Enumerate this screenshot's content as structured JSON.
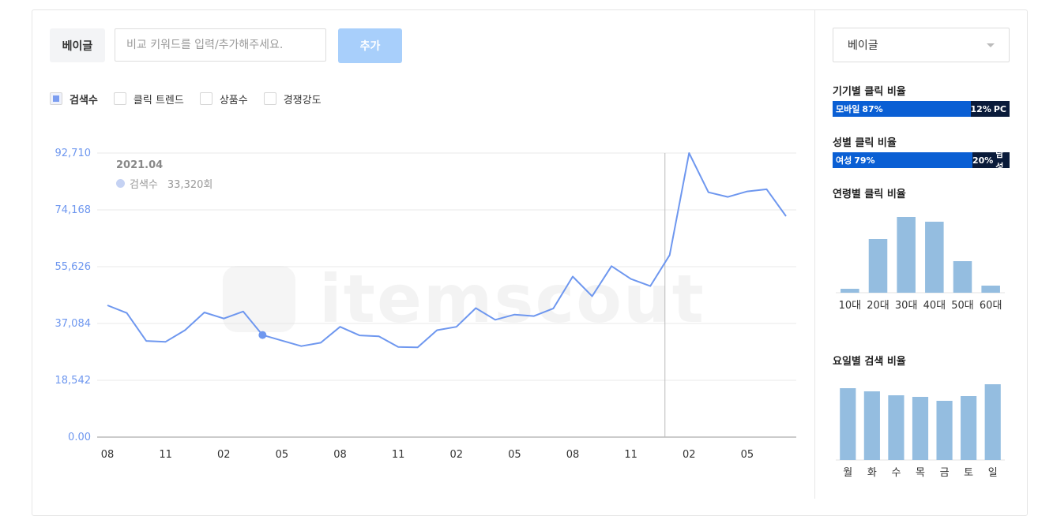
{
  "compare": {
    "keyword_chip": "베이글",
    "input_placeholder": "비교 키워드를 입력/추가해주세요.",
    "add_button": "추가"
  },
  "legend": [
    {
      "label": "검색수",
      "checked": true
    },
    {
      "label": "클릭 트렌드",
      "checked": false
    },
    {
      "label": "상품수",
      "checked": false
    },
    {
      "label": "경쟁강도",
      "checked": false
    }
  ],
  "watermark": "itemscout",
  "tooltip": {
    "date": "2021.04",
    "series": "검색수",
    "value": "33,320회"
  },
  "chart_data": {
    "type": "line",
    "title": "",
    "series": [
      {
        "name": "검색수",
        "color": "#6e97ef",
        "values": [
          43000,
          40500,
          31400,
          31100,
          34900,
          40700,
          38700,
          41000,
          33320,
          31500,
          29700,
          30800,
          36000,
          33200,
          32900,
          29400,
          29300,
          34900,
          36000,
          42100,
          38300,
          40000,
          39500,
          42000,
          52400,
          46000,
          55800,
          51600,
          49300,
          59400,
          92710,
          79900,
          78400,
          80200,
          80900,
          72100
        ]
      }
    ],
    "x_tick_labels": [
      "08",
      "11",
      "02",
      "05",
      "08",
      "11",
      "02",
      "05",
      "08",
      "11",
      "02",
      "05"
    ],
    "y_ticks": [
      "0.00",
      "18,542",
      "37,084",
      "55,626",
      "74,168",
      "92,710"
    ],
    "ylim": [
      0,
      92710
    ],
    "highlight_index": 8,
    "marker_index": 29
  },
  "side": {
    "select_value": "베이글",
    "device": {
      "title": "기기별 클릭 비율",
      "a_label": "모바일",
      "a_pct": "87%",
      "a_value": 87,
      "b_label": "PC",
      "b_pct": "12%"
    },
    "gender": {
      "title": "성별 클릭 비율",
      "a_label": "여성",
      "a_pct": "79%",
      "a_value": 79,
      "b_label": "남성",
      "b_pct": "20%"
    },
    "age": {
      "title": "연령별 클릭 비율",
      "chart_data": {
        "type": "bar",
        "categories": [
          "10대",
          "20대",
          "30대",
          "40대",
          "50대",
          "60대"
        ],
        "values": [
          5,
          68,
          96,
          90,
          40,
          9
        ],
        "ylim": [
          0,
          100
        ]
      }
    },
    "weekday": {
      "title": "요일별 검색 비율",
      "chart_data": {
        "type": "bar",
        "categories": [
          "월",
          "화",
          "수",
          "목",
          "금",
          "토",
          "일"
        ],
        "values": [
          91,
          87,
          82,
          80,
          75,
          81,
          96
        ],
        "ylim": [
          0,
          100
        ]
      }
    }
  },
  "colors": {
    "accent": "#6e97ef",
    "bar": "#94bde0",
    "mobile": "#0a5fd4",
    "pc": "#0a1b3a",
    "button": "#a8cffb"
  }
}
